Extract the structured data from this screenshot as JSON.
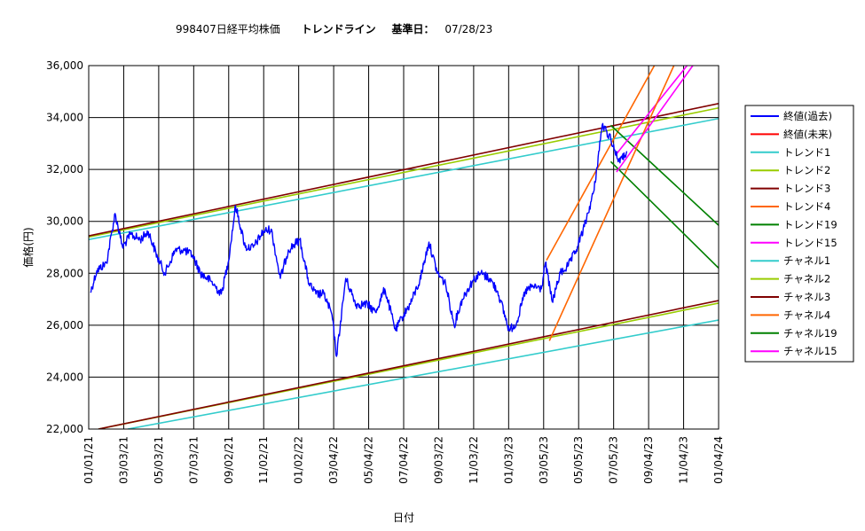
{
  "chart_data": {
    "type": "line",
    "title": {
      "code_name": "998407日経平均株価",
      "subtitle": "トレンドライン",
      "base_label": "基準日：",
      "base_date": "07/28/23"
    },
    "xlabel": "日付",
    "ylabel": "価格(円)",
    "ylim": [
      22000,
      36000
    ],
    "yticks": [
      "22,000",
      "24,000",
      "26,000",
      "28,000",
      "30,000",
      "32,000",
      "34,000",
      "36,000"
    ],
    "xticks": [
      "01/01/21",
      "03/03/21",
      "05/03/21",
      "07/03/21",
      "09/02/21",
      "11/02/21",
      "01/02/22",
      "03/04/22",
      "05/04/22",
      "07/04/22",
      "09/03/22",
      "11/03/22",
      "01/03/23",
      "03/05/23",
      "05/05/23",
      "07/05/23",
      "09/04/23",
      "11/04/23",
      "01/04/24"
    ],
    "xlim": [
      "2021-01-01",
      "2024-01-04"
    ],
    "grid": true,
    "legend_position": "right",
    "series": [
      {
        "name": "終値(過去)",
        "color": "#0000ff",
        "kind": "price",
        "dates": [
          "2021-01-04",
          "2021-01-15",
          "2021-02-01",
          "2021-02-16",
          "2021-03-01",
          "2021-03-15",
          "2021-04-01",
          "2021-04-15",
          "2021-05-01",
          "2021-05-14",
          "2021-06-01",
          "2021-06-15",
          "2021-07-01",
          "2021-07-15",
          "2021-08-02",
          "2021-08-20",
          "2021-09-01",
          "2021-09-14",
          "2021-10-01",
          "2021-10-15",
          "2021-11-01",
          "2021-11-15",
          "2021-12-01",
          "2021-12-15",
          "2022-01-04",
          "2022-01-20",
          "2022-02-01",
          "2022-02-15",
          "2022-03-01",
          "2022-03-09",
          "2022-03-25",
          "2022-04-12",
          "2022-05-02",
          "2022-05-16",
          "2022-06-01",
          "2022-06-20",
          "2022-07-01",
          "2022-07-15",
          "2022-08-01",
          "2022-08-17",
          "2022-09-01",
          "2022-09-15",
          "2022-09-30",
          "2022-10-14",
          "2022-11-01",
          "2022-11-15",
          "2022-12-01",
          "2022-12-15",
          "2023-01-04",
          "2023-01-17",
          "2023-02-01",
          "2023-02-15",
          "2023-03-01",
          "2023-03-08",
          "2023-03-20",
          "2023-04-03",
          "2023-04-17",
          "2023-05-01",
          "2023-05-15",
          "2023-06-01",
          "2023-06-15",
          "2023-06-30",
          "2023-07-12",
          "2023-07-20",
          "2023-07-28"
        ],
        "values": [
          27258,
          28100,
          28400,
          30300,
          29000,
          29500,
          29300,
          29600,
          28600,
          28000,
          28900,
          28900,
          28700,
          28000,
          27700,
          27200,
          28400,
          30600,
          29000,
          29000,
          29600,
          29700,
          27800,
          28900,
          29300,
          27600,
          27200,
          27200,
          26400,
          24800,
          27800,
          26800,
          26800,
          26500,
          27400,
          25800,
          26300,
          26800,
          27700,
          29200,
          28000,
          27600,
          26000,
          27000,
          27700,
          28000,
          27800,
          27300,
          25800,
          26100,
          27300,
          27500,
          27400,
          28400,
          26900,
          28000,
          28300,
          28900,
          29800,
          31200,
          33700,
          33200,
          32400,
          32400,
          32700
        ]
      },
      {
        "name": "終値(未来)",
        "color": "#ff0000",
        "kind": "future",
        "dates": [],
        "values": []
      },
      {
        "name": "トレンド1",
        "color": "#33cccc",
        "kind": "trend",
        "dates": [
          "2021-01-01",
          "2024-01-04"
        ],
        "values": [
          29300,
          33960
        ]
      },
      {
        "name": "トレンド2",
        "color": "#99cc00",
        "kind": "trend",
        "dates": [
          "2021-01-01",
          "2024-01-04"
        ],
        "values": [
          29400,
          34370
        ]
      },
      {
        "name": "トレンド3",
        "color": "#800000",
        "kind": "trend",
        "dates": [
          "2021-01-01",
          "2024-01-04"
        ],
        "values": [
          29440,
          34540
        ]
      },
      {
        "name": "トレンド4",
        "color": "#ff6600",
        "kind": "trend",
        "dates": [
          "2023-03-10",
          "2023-09-14"
        ],
        "values": [
          28500,
          36000
        ]
      },
      {
        "name": "トレンド19",
        "color": "#008000",
        "kind": "trend",
        "dates": [
          "2023-06-30",
          "2024-01-04"
        ],
        "values": [
          33700,
          29850
        ]
      },
      {
        "name": "トレンド15",
        "color": "#ff00ff",
        "kind": "trend",
        "dates": [
          "2023-07-10",
          "2023-11-10"
        ],
        "values": [
          32600,
          36000
        ]
      },
      {
        "name": "チャネル1",
        "color": "#33cccc",
        "kind": "trend",
        "dates": [
          "2021-03-10",
          "2024-01-04"
        ],
        "values": [
          22000,
          26200
        ]
      },
      {
        "name": "チャネル2",
        "color": "#99cc00",
        "kind": "trend",
        "dates": [
          "2021-01-18",
          "2024-01-04"
        ],
        "values": [
          22000,
          26850
        ]
      },
      {
        "name": "チャネル3",
        "color": "#800000",
        "kind": "trend",
        "dates": [
          "2021-01-18",
          "2024-01-04"
        ],
        "values": [
          22000,
          26950
        ]
      },
      {
        "name": "チャネル4",
        "color": "#ff6600",
        "kind": "trend",
        "dates": [
          "2023-03-15",
          "2023-10-18"
        ],
        "values": [
          25400,
          36000
        ]
      },
      {
        "name": "チャネル19",
        "color": "#008000",
        "kind": "trend",
        "dates": [
          "2023-06-30",
          "2024-01-04"
        ],
        "values": [
          32300,
          28200
        ]
      },
      {
        "name": "チャネル15",
        "color": "#ff00ff",
        "kind": "trend",
        "dates": [
          "2023-07-10",
          "2023-11-20"
        ],
        "values": [
          31900,
          36000
        ]
      }
    ]
  }
}
